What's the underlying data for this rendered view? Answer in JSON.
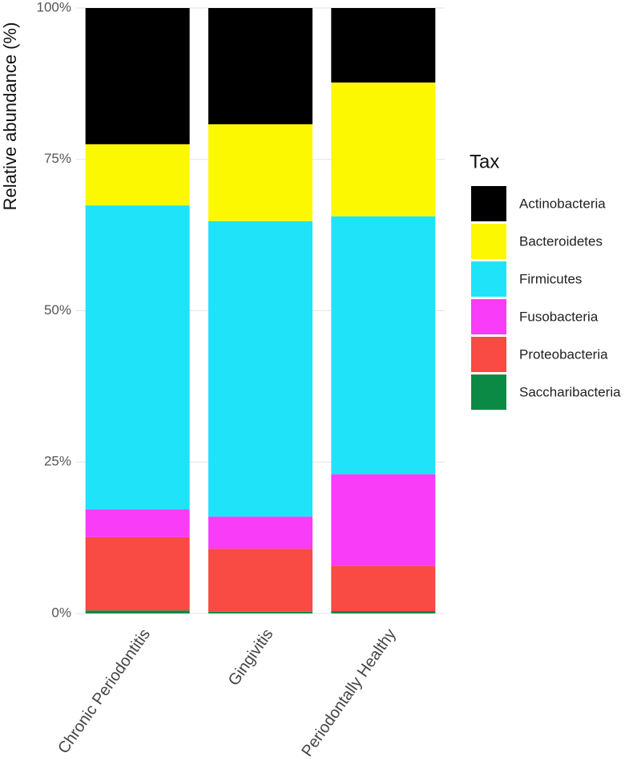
{
  "chart_data": {
    "type": "stacked_bar",
    "y_label": "Relative abundance (%)",
    "legend_title": "Tax",
    "categories": [
      "Chronic Periodontitis",
      "Gingivitis",
      "Periodontally Healthy"
    ],
    "series": [
      {
        "name": "Saccharibacteria",
        "color": "#0b8a45",
        "values": [
          0.5,
          0.3,
          0.4
        ]
      },
      {
        "name": "Proteobacteria",
        "color": "#f94a43",
        "values": [
          12.1,
          10.4,
          7.5
        ]
      },
      {
        "name": "Fusobacteria",
        "color": "#f83cf8",
        "values": [
          4.6,
          5.3,
          15.1
        ]
      },
      {
        "name": "Firmicutes",
        "color": "#1fe3f9",
        "values": [
          50.2,
          48.8,
          42.6
        ]
      },
      {
        "name": "Bacteroidetes",
        "color": "#fbf801",
        "values": [
          10.1,
          16.0,
          22.1
        ]
      },
      {
        "name": "Actinobacteria",
        "color": "#000000",
        "values": [
          22.5,
          19.2,
          12.3
        ]
      }
    ],
    "ylim": [
      0,
      100
    ],
    "yticks": [
      {
        "value": 0,
        "label": "0%"
      },
      {
        "value": 25,
        "label": "25%"
      },
      {
        "value": 50,
        "label": "50%"
      },
      {
        "value": 75,
        "label": "75%"
      },
      {
        "value": 100,
        "label": "100%"
      }
    ],
    "grid": true,
    "legend_position": "right"
  }
}
